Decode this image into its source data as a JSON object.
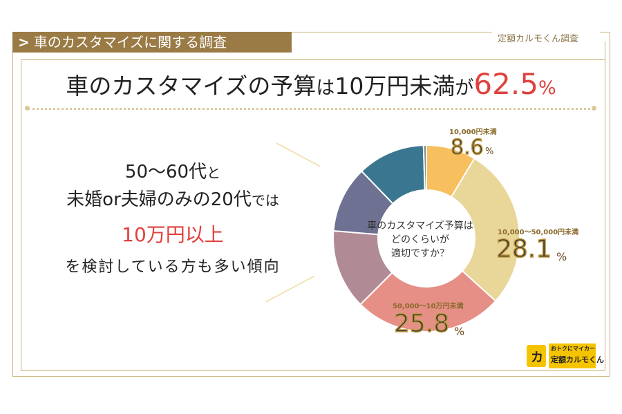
{
  "header": {
    "tag_label": "車のカスタマイズに関する調査",
    "chevron_icon": "chevron-right-icon",
    "brand_label": "定額カルモくん調査"
  },
  "headline": {
    "part1": "車のカスタマイズの予算",
    "part2": "は",
    "part3": "10万円未満",
    "part4": "が",
    "value": "62.5",
    "unit": "%"
  },
  "left": {
    "line1_main": "50～60代",
    "line1_small": "と",
    "line2_main": "未婚or夫婦のみの20代",
    "line2_small": "では",
    "line3": "10万円以上",
    "line4": "を検討している方も多い傾向"
  },
  "chart_data": {
    "type": "pie",
    "variant": "donut",
    "center_text": [
      "車のカスタマイズ予算は",
      "どのくらいが",
      "適切ですか？"
    ],
    "slices": [
      {
        "label": "10,000円未満",
        "value": 8.6,
        "display": "8.6",
        "color": "#f7bf5e"
      },
      {
        "label": "10,000～50,000円未満",
        "value": 28.1,
        "display": "28.1",
        "color": "#e9d79a"
      },
      {
        "label": "50,000～10万円未満",
        "value": 25.8,
        "display": "25.8",
        "color": "#e58f86"
      },
      {
        "label": "",
        "value": 13.8,
        "color": "#b08a95"
      },
      {
        "label": "",
        "value": 11.5,
        "color": "#6e7191"
      },
      {
        "label": "",
        "value": 11.7,
        "color": "#3a7690"
      },
      {
        "label": "",
        "value": 0.5,
        "color": "#7b8a86"
      }
    ],
    "percent_unit": "%"
  },
  "logo": {
    "line1": "おトクにマイカー",
    "line2": "定額カルモくん",
    "icon": "car-logo-icon"
  },
  "colors": {
    "accent_red": "#e0413d",
    "gold": "#9a7a45",
    "frame": "#c9b27a"
  }
}
